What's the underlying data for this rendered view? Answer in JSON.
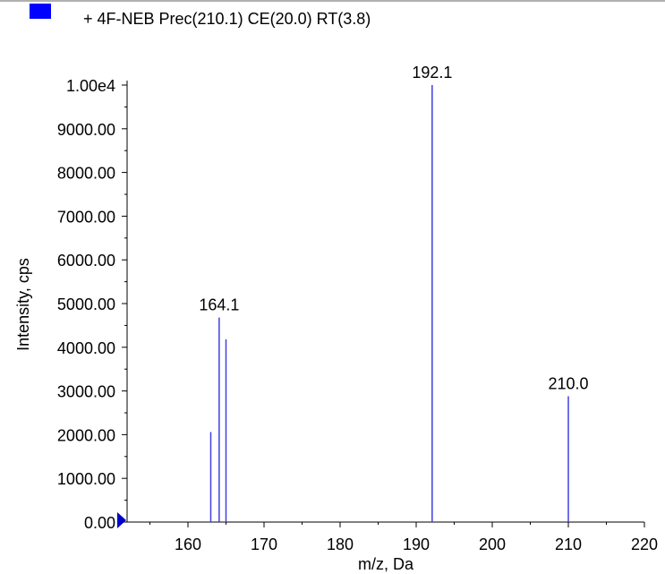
{
  "legend": {
    "label": "+ 4F-NEB Prec(210.1) CE(20.0) RT(3.8)",
    "swatch_color": "#0000ff"
  },
  "chart_data": {
    "type": "bar",
    "title": "",
    "xlabel": "m/z, Da",
    "ylabel": "Intensity, cps",
    "xlim": [
      152,
      220
    ],
    "ylim": [
      0,
      10000
    ],
    "x_ticks": [
      160,
      170,
      180,
      190,
      200,
      210,
      220
    ],
    "x_tick_labels": [
      "160",
      "170",
      "180",
      "190",
      "200",
      "210",
      "220"
    ],
    "y_ticks": [
      0,
      1000,
      2000,
      3000,
      4000,
      5000,
      6000,
      7000,
      8000,
      9000,
      10000
    ],
    "y_tick_labels": [
      "0.00",
      "1000.00",
      "2000.00",
      "3000.00",
      "4000.00",
      "5000.00",
      "6000.00",
      "7000.00",
      "8000.00",
      "9000.00",
      "1.00e4"
    ],
    "series": [
      {
        "color": "#4040e0",
        "x": [
          163.0,
          164.1,
          165.0,
          192.1,
          210.0
        ],
        "values": [
          2060,
          4680,
          4180,
          10000,
          2880
        ]
      }
    ],
    "peak_labels": [
      {
        "x": 164.1,
        "y": 4680,
        "text": "164.1"
      },
      {
        "x": 192.1,
        "y": 10000,
        "text": "192.1"
      },
      {
        "x": 210.0,
        "y": 2880,
        "text": "210.0"
      }
    ],
    "grid": false,
    "legend_position": "top-left",
    "marker_color": "#0000cc"
  }
}
